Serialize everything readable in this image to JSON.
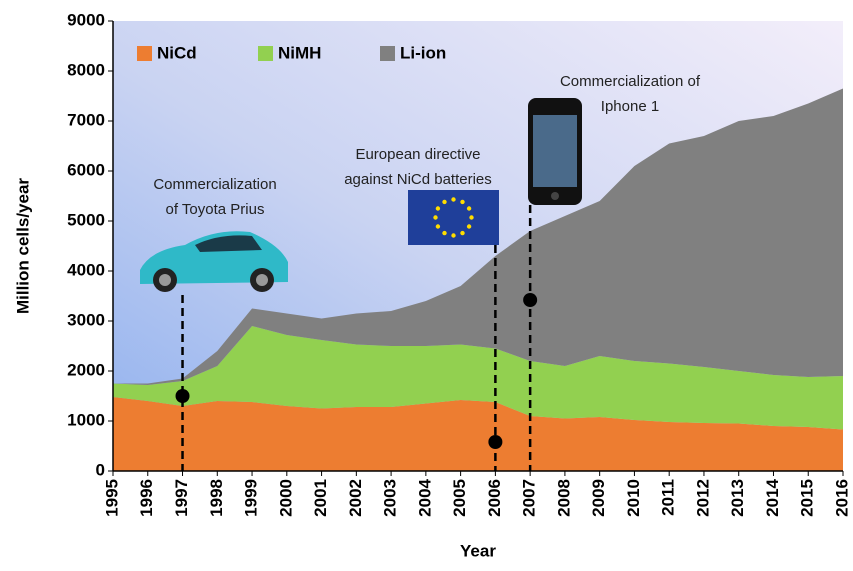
{
  "chart_data": {
    "type": "stacked_area",
    "x_label": "Year",
    "y_label": "Million cells/year",
    "x": [
      1995,
      1996,
      1997,
      1998,
      1999,
      2000,
      2001,
      2002,
      2003,
      2004,
      2005,
      2006,
      2007,
      2008,
      2009,
      2010,
      2011,
      2012,
      2013,
      2014,
      2015,
      2016
    ],
    "series": [
      {
        "name": "NiCd",
        "color": "#ed7d31",
        "values": [
          1480,
          1400,
          1300,
          1400,
          1380,
          1300,
          1250,
          1280,
          1280,
          1350,
          1420,
          1380,
          1100,
          1050,
          1080,
          1020,
          980,
          960,
          950,
          900,
          880,
          830
        ]
      },
      {
        "name": "NiMH",
        "color": "#92d050",
        "values": [
          270,
          320,
          500,
          700,
          1520,
          1420,
          1370,
          1250,
          1220,
          1150,
          1110,
          1070,
          1100,
          1050,
          1220,
          1180,
          1170,
          1120,
          1050,
          1020,
          1000,
          1070
        ]
      },
      {
        "name": "Li-ion",
        "color": "#808080",
        "values": [
          0,
          30,
          50,
          300,
          350,
          430,
          430,
          620,
          700,
          900,
          1170,
          1850,
          2600,
          3000,
          3100,
          3900,
          4400,
          4620,
          5000,
          5180,
          5470,
          5750
        ]
      }
    ],
    "xlim": [
      1995,
      2016
    ],
    "xticks": [
      1995,
      1996,
      1997,
      1998,
      1999,
      2000,
      2001,
      2002,
      2003,
      2004,
      2005,
      2006,
      2007,
      2008,
      2009,
      2010,
      2011,
      2012,
      2013,
      2014,
      2015,
      2016
    ],
    "ylim": [
      0,
      9000
    ],
    "yticks": [
      0,
      1000,
      2000,
      3000,
      4000,
      5000,
      6000,
      7000,
      8000,
      9000
    ],
    "legend": "top-left",
    "annotations": [
      {
        "x": 1997,
        "y": 1500,
        "lines": [
          "Commercialization",
          "of Toyota Prius"
        ]
      },
      {
        "x": 2006,
        "y": 580,
        "lines": [
          "European directive",
          "against NiCd batteries"
        ]
      },
      {
        "x": 2007,
        "y": 3420,
        "lines": [
          "Commercialization of",
          "Iphone 1"
        ]
      }
    ]
  }
}
